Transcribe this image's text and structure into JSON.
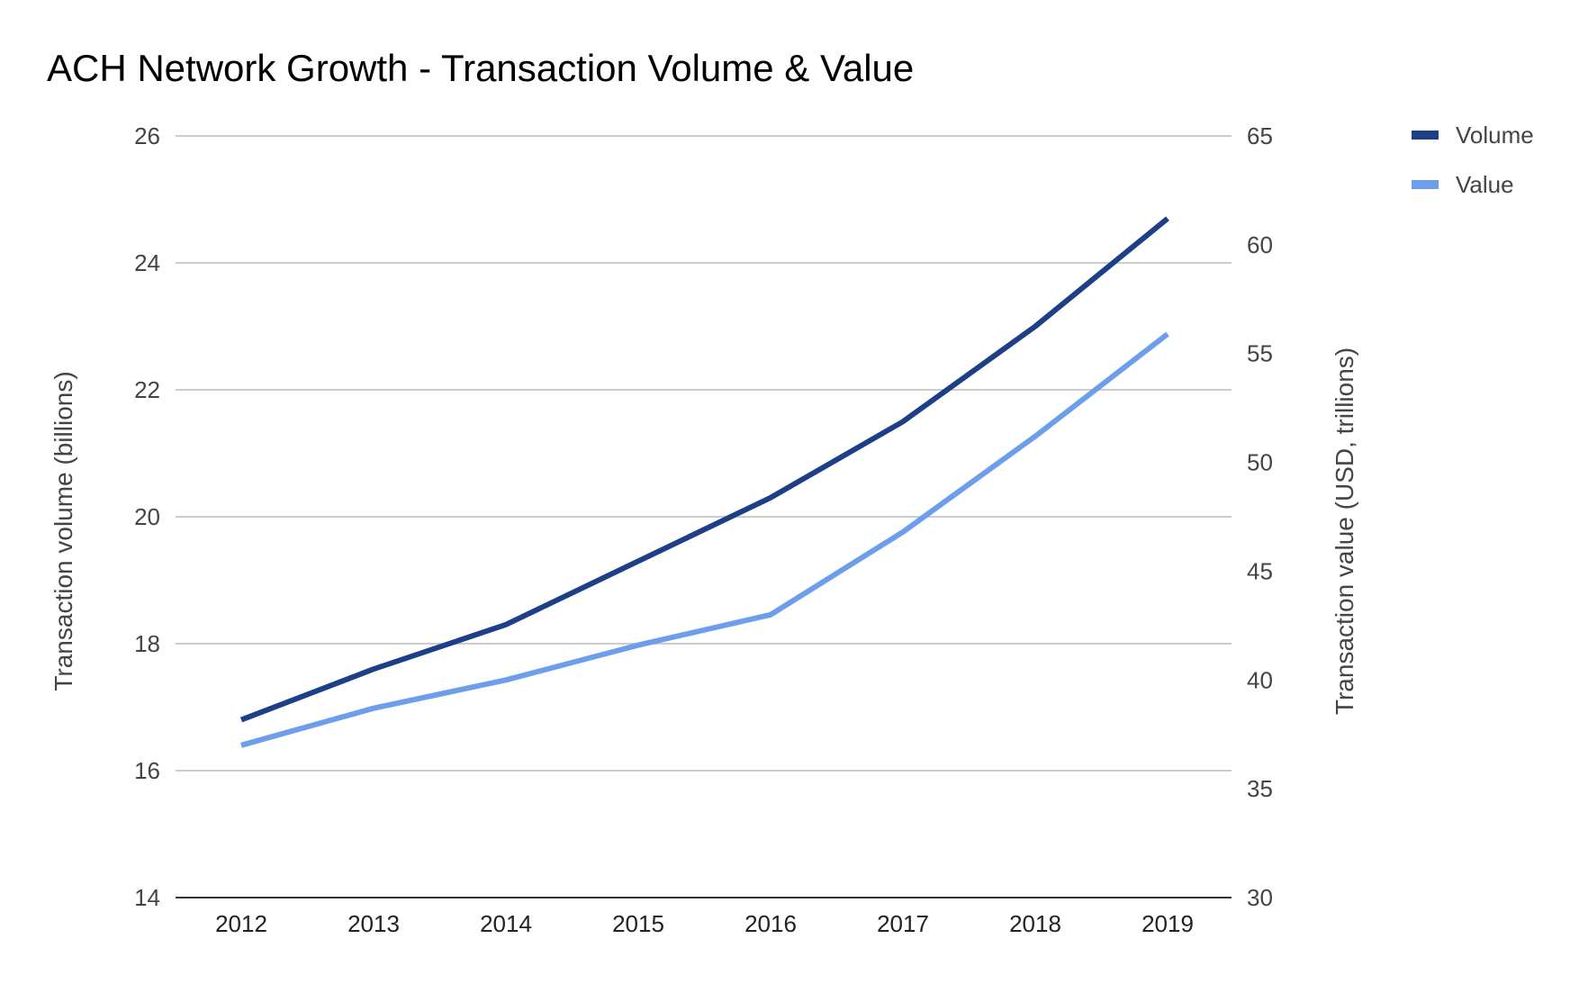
{
  "chart_data": {
    "type": "line",
    "title": "ACH Network Growth - Transaction Volume & Value",
    "categories": [
      "2012",
      "2013",
      "2014",
      "2015",
      "2016",
      "2017",
      "2018",
      "2019"
    ],
    "y_left": {
      "label": "Transaction volume (billions)",
      "ylim": [
        14,
        26
      ],
      "ticks": [
        "14",
        "16",
        "18",
        "20",
        "22",
        "24",
        "26"
      ]
    },
    "y_right": {
      "label": "Transaction value (USD, trillions)",
      "ylim": [
        30,
        65
      ],
      "ticks": [
        "30",
        "35",
        "40",
        "45",
        "50",
        "55",
        "60",
        "65"
      ]
    },
    "series": [
      {
        "name": "Volume",
        "axis": "left",
        "color": "#1c3f87",
        "values": [
          16.8,
          17.6,
          18.3,
          19.3,
          20.3,
          21.5,
          23.0,
          24.7
        ]
      },
      {
        "name": "Value",
        "axis": "right",
        "color": "#6d9eeb",
        "values": [
          37.0,
          38.7,
          40.0,
          41.6,
          43.0,
          46.8,
          51.2,
          55.9
        ]
      }
    ],
    "grid": true,
    "legend": "top-right"
  }
}
